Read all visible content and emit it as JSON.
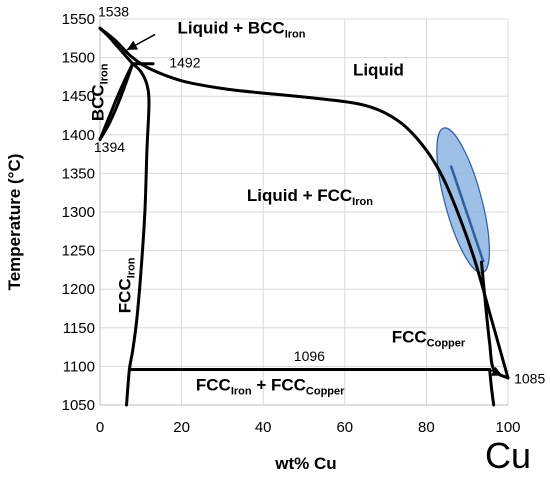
{
  "chart_data": {
    "type": "line",
    "title": "",
    "xlabel": "wt% Cu",
    "ylabel": "Temperature (°C)",
    "xlim": [
      0,
      100
    ],
    "ylim": [
      1050,
      1550
    ],
    "x_ticks": [
      0,
      20,
      40,
      60,
      80,
      100
    ],
    "y_ticks": [
      1050,
      1100,
      1150,
      1200,
      1250,
      1300,
      1350,
      1400,
      1450,
      1500,
      1550
    ],
    "grid": true,
    "element_label": "Cu",
    "line_color": "#000000",
    "ellipse_fill": "#8db4e2",
    "ellipse_stroke": "#2e5f9e",
    "series": [
      {
        "key": "liquidus",
        "x": [
          0,
          2,
          4,
          6,
          8,
          12,
          20,
          30,
          40,
          50,
          60,
          65,
          70,
          75,
          80,
          84,
          88,
          92,
          96,
          100
        ],
        "y": [
          1538,
          1530,
          1521,
          1510,
          1500,
          1486,
          1470,
          1460,
          1454,
          1449,
          1443,
          1438,
          1428,
          1410,
          1380,
          1345,
          1295,
          1235,
          1160,
          1085
        ]
      },
      {
        "key": "bcc_solidus",
        "x": [
          0,
          2,
          4,
          6,
          8
        ],
        "y": [
          1538,
          1528,
          1516,
          1504,
          1492
        ]
      },
      {
        "key": "bcc_fcc_upper",
        "x": [
          0,
          2,
          4,
          6,
          8
        ],
        "y": [
          1394,
          1420,
          1446,
          1470,
          1492
        ]
      },
      {
        "key": "bcc_fcc_lower",
        "x": [
          0,
          2,
          4,
          6,
          8
        ],
        "y": [
          1394,
          1412,
          1435,
          1462,
          1492
        ]
      },
      {
        "key": "peritectic_line",
        "x": [
          8,
          13
        ],
        "y": [
          1492,
          1492
        ]
      },
      {
        "key": "fcc_iron_solidus",
        "x": [
          8,
          10,
          11.5,
          12,
          11.5,
          11,
          10,
          9,
          8,
          7.2,
          6.5
        ],
        "y": [
          1492,
          1482,
          1465,
          1440,
          1380,
          1300,
          1220,
          1160,
          1120,
          1096,
          1050
        ]
      },
      {
        "key": "eutectic_line",
        "x": [
          7.2,
          95.5
        ],
        "y": [
          1096,
          1096
        ]
      },
      {
        "key": "fcc_copper_solvus",
        "x": [
          95.5,
          96,
          96.5
        ],
        "y": [
          1096,
          1070,
          1050
        ]
      },
      {
        "key": "fcc_copper_solidus",
        "x": [
          93.5,
          94.5,
          95.5,
          96.5,
          100
        ],
        "y": [
          1235,
          1180,
          1130,
          1096,
          1085
        ]
      }
    ],
    "ellipse": {
      "cx": 89,
      "cy": 1315,
      "rx_data": 4.5,
      "ry_data": 97,
      "rotation_deg": -15
    },
    "tie_line": {
      "x": [
        86,
        94
      ],
      "y": [
        1360,
        1235
      ]
    },
    "point_labels": [
      {
        "text": "1538",
        "x": -0.5,
        "y": 1553
      },
      {
        "text": "1492",
        "x": 17,
        "y": 1487
      },
      {
        "text": "1394",
        "x": -1.5,
        "y": 1378
      },
      {
        "text": "1096",
        "x": 47.5,
        "y": 1107
      },
      {
        "text": "1085",
        "x": 101.5,
        "y": 1078
      }
    ],
    "phase_labels": [
      {
        "text": "Liquid + BCC",
        "sub": "Iron",
        "x": 19,
        "y": 1531
      },
      {
        "text": "Liquid",
        "x": 62,
        "y": 1477
      },
      {
        "text": "Liquid + FCC",
        "sub": "Iron",
        "x": 36,
        "y": 1314
      },
      {
        "text": "FCC",
        "sub": "Copper",
        "x": 71.5,
        "y": 1131
      },
      {
        "text": "FCC",
        "sub": "Iron",
        "x": 23.5,
        "y": 1069,
        "mid": "+ FCC",
        "sub2": "Copper"
      }
    ],
    "rotated_labels": [
      {
        "text": "BCC",
        "sub": "Iron",
        "x": 0.8,
        "y": 1455
      },
      {
        "text": "FCC",
        "sub": "Iron",
        "x": 7.5,
        "y": 1205
      }
    ],
    "arrows": [
      {
        "from_x": 13.5,
        "from_y": 1530,
        "to_x": 6.6,
        "to_y": 1510
      },
      {
        "from_x": 95.5,
        "from_y": 1096,
        "to_x": 98.6,
        "to_y": 1088
      }
    ]
  }
}
